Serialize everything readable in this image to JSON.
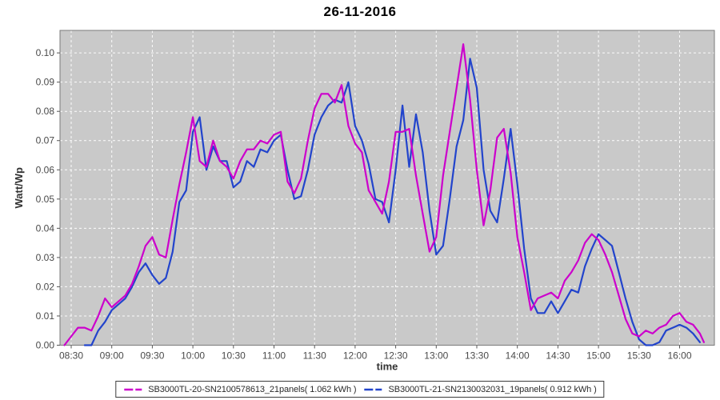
{
  "chart_data": {
    "type": "line",
    "title": "26-11-2016",
    "xlabel": "time",
    "ylabel": "Watt/Wp",
    "ylim": [
      0.0,
      0.1077
    ],
    "x_ticks": [
      "08:30",
      "09:00",
      "09:30",
      "10:00",
      "10:30",
      "11:00",
      "11:30",
      "12:00",
      "12:30",
      "13:00",
      "13:30",
      "14:00",
      "14:30",
      "15:00",
      "15:30",
      "16:00"
    ],
    "y_ticks": [
      "0.00",
      "0.01",
      "0.02",
      "0.03",
      "0.04",
      "0.05",
      "0.06",
      "0.07",
      "0.08",
      "0.09",
      "0.10"
    ],
    "grid": {
      "show": true,
      "style": "dashed",
      "color": "#ffffff"
    },
    "plot_background": "#c9c9c9",
    "frame_color": "#7a7a7a",
    "legend_position": "bottom",
    "series": [
      {
        "name": "SB3000TL-20-SN2100578613_21panels( 1.062 kWh )",
        "color": "#cc00cc",
        "energy_kwh": "1.062",
        "points": [
          [
            "08:25",
            0.0
          ],
          [
            "08:30",
            0.003
          ],
          [
            "08:35",
            0.006
          ],
          [
            "08:40",
            0.006
          ],
          [
            "08:45",
            0.005
          ],
          [
            "08:50",
            0.01
          ],
          [
            "08:55",
            0.016
          ],
          [
            "09:00",
            0.013
          ],
          [
            "09:05",
            0.015
          ],
          [
            "09:10",
            0.017
          ],
          [
            "09:15",
            0.021
          ],
          [
            "09:20",
            0.027
          ],
          [
            "09:25",
            0.034
          ],
          [
            "09:30",
            0.037
          ],
          [
            "09:35",
            0.031
          ],
          [
            "09:40",
            0.03
          ],
          [
            "09:45",
            0.043
          ],
          [
            "09:50",
            0.055
          ],
          [
            "09:55",
            0.066
          ],
          [
            "10:00",
            0.078
          ],
          [
            "10:05",
            0.063
          ],
          [
            "10:10",
            0.061
          ],
          [
            "10:15",
            0.07
          ],
          [
            "10:20",
            0.063
          ],
          [
            "10:25",
            0.061
          ],
          [
            "10:30",
            0.057
          ],
          [
            "10:35",
            0.063
          ],
          [
            "10:40",
            0.067
          ],
          [
            "10:45",
            0.067
          ],
          [
            "10:50",
            0.07
          ],
          [
            "10:55",
            0.069
          ],
          [
            "11:00",
            0.072
          ],
          [
            "11:05",
            0.073
          ],
          [
            "11:10",
            0.056
          ],
          [
            "11:15",
            0.052
          ],
          [
            "11:20",
            0.057
          ],
          [
            "11:25",
            0.07
          ],
          [
            "11:30",
            0.081
          ],
          [
            "11:35",
            0.086
          ],
          [
            "11:40",
            0.086
          ],
          [
            "11:45",
            0.083
          ],
          [
            "11:50",
            0.089
          ],
          [
            "11:55",
            0.075
          ],
          [
            "12:00",
            0.069
          ],
          [
            "12:05",
            0.066
          ],
          [
            "12:10",
            0.053
          ],
          [
            "12:15",
            0.049
          ],
          [
            "12:20",
            0.045
          ],
          [
            "12:25",
            0.056
          ],
          [
            "12:30",
            0.073
          ],
          [
            "12:35",
            0.073
          ],
          [
            "12:40",
            0.074
          ],
          [
            "12:45",
            0.058
          ],
          [
            "12:50",
            0.045
          ],
          [
            "12:55",
            0.032
          ],
          [
            "13:00",
            0.037
          ],
          [
            "13:05",
            0.058
          ],
          [
            "13:10",
            0.073
          ],
          [
            "13:15",
            0.088
          ],
          [
            "13:20",
            0.103
          ],
          [
            "13:25",
            0.084
          ],
          [
            "13:30",
            0.06
          ],
          [
            "13:35",
            0.041
          ],
          [
            "13:40",
            0.053
          ],
          [
            "13:45",
            0.071
          ],
          [
            "13:50",
            0.074
          ],
          [
            "13:55",
            0.059
          ],
          [
            "14:00",
            0.037
          ],
          [
            "14:05",
            0.025
          ],
          [
            "14:10",
            0.012
          ],
          [
            "14:15",
            0.016
          ],
          [
            "14:20",
            0.017
          ],
          [
            "14:25",
            0.018
          ],
          [
            "14:30",
            0.016
          ],
          [
            "14:35",
            0.022
          ],
          [
            "14:40",
            0.025
          ],
          [
            "14:45",
            0.029
          ],
          [
            "14:50",
            0.035
          ],
          [
            "14:55",
            0.038
          ],
          [
            "15:00",
            0.036
          ],
          [
            "15:05",
            0.031
          ],
          [
            "15:10",
            0.025
          ],
          [
            "15:15",
            0.017
          ],
          [
            "15:20",
            0.009
          ],
          [
            "15:25",
            0.004
          ],
          [
            "15:30",
            0.003
          ],
          [
            "15:35",
            0.005
          ],
          [
            "15:40",
            0.004
          ],
          [
            "15:45",
            0.006
          ],
          [
            "15:50",
            0.007
          ],
          [
            "15:55",
            0.01
          ],
          [
            "16:00",
            0.011
          ],
          [
            "16:05",
            0.008
          ],
          [
            "16:10",
            0.007
          ],
          [
            "16:15",
            0.004
          ],
          [
            "16:18",
            0.001
          ]
        ]
      },
      {
        "name": "SB3000TL-21-SN2130032031_19panels( 0.912 kWh )",
        "color": "#2244cc",
        "energy_kwh": "0.912",
        "points": [
          [
            "08:40",
            0.0
          ],
          [
            "08:45",
            0.0
          ],
          [
            "08:50",
            0.005
          ],
          [
            "08:55",
            0.008
          ],
          [
            "09:00",
            0.012
          ],
          [
            "09:05",
            0.014
          ],
          [
            "09:10",
            0.016
          ],
          [
            "09:15",
            0.02
          ],
          [
            "09:20",
            0.025
          ],
          [
            "09:25",
            0.028
          ],
          [
            "09:30",
            0.024
          ],
          [
            "09:35",
            0.021
          ],
          [
            "09:40",
            0.023
          ],
          [
            "09:45",
            0.032
          ],
          [
            "09:50",
            0.049
          ],
          [
            "09:55",
            0.053
          ],
          [
            "10:00",
            0.073
          ],
          [
            "10:05",
            0.078
          ],
          [
            "10:10",
            0.06
          ],
          [
            "10:15",
            0.068
          ],
          [
            "10:20",
            0.063
          ],
          [
            "10:25",
            0.063
          ],
          [
            "10:30",
            0.054
          ],
          [
            "10:35",
            0.056
          ],
          [
            "10:40",
            0.063
          ],
          [
            "10:45",
            0.061
          ],
          [
            "10:50",
            0.067
          ],
          [
            "10:55",
            0.066
          ],
          [
            "11:00",
            0.07
          ],
          [
            "11:05",
            0.072
          ],
          [
            "11:10",
            0.06
          ],
          [
            "11:15",
            0.05
          ],
          [
            "11:20",
            0.051
          ],
          [
            "11:25",
            0.06
          ],
          [
            "11:30",
            0.072
          ],
          [
            "11:35",
            0.078
          ],
          [
            "11:40",
            0.082
          ],
          [
            "11:45",
            0.084
          ],
          [
            "11:50",
            0.083
          ],
          [
            "11:55",
            0.09
          ],
          [
            "12:00",
            0.075
          ],
          [
            "12:05",
            0.07
          ],
          [
            "12:10",
            0.062
          ],
          [
            "12:15",
            0.05
          ],
          [
            "12:20",
            0.049
          ],
          [
            "12:25",
            0.042
          ],
          [
            "12:30",
            0.06
          ],
          [
            "12:35",
            0.082
          ],
          [
            "12:40",
            0.061
          ],
          [
            "12:45",
            0.079
          ],
          [
            "12:50",
            0.066
          ],
          [
            "12:55",
            0.046
          ],
          [
            "13:00",
            0.031
          ],
          [
            "13:05",
            0.034
          ],
          [
            "13:10",
            0.05
          ],
          [
            "13:15",
            0.068
          ],
          [
            "13:20",
            0.077
          ],
          [
            "13:25",
            0.098
          ],
          [
            "13:30",
            0.088
          ],
          [
            "13:35",
            0.06
          ],
          [
            "13:40",
            0.046
          ],
          [
            "13:45",
            0.042
          ],
          [
            "13:50",
            0.057
          ],
          [
            "13:55",
            0.074
          ],
          [
            "14:00",
            0.055
          ],
          [
            "14:05",
            0.033
          ],
          [
            "14:10",
            0.016
          ],
          [
            "14:15",
            0.011
          ],
          [
            "14:20",
            0.011
          ],
          [
            "14:25",
            0.015
          ],
          [
            "14:30",
            0.011
          ],
          [
            "14:35",
            0.015
          ],
          [
            "14:40",
            0.019
          ],
          [
            "14:45",
            0.018
          ],
          [
            "14:50",
            0.027
          ],
          [
            "14:55",
            0.033
          ],
          [
            "15:00",
            0.038
          ],
          [
            "15:05",
            0.036
          ],
          [
            "15:10",
            0.034
          ],
          [
            "15:15",
            0.025
          ],
          [
            "15:20",
            0.016
          ],
          [
            "15:25",
            0.008
          ],
          [
            "15:30",
            0.002
          ],
          [
            "15:35",
            0.0
          ],
          [
            "15:40",
            0.0
          ],
          [
            "15:45",
            0.001
          ],
          [
            "15:50",
            0.005
          ],
          [
            "15:55",
            0.006
          ],
          [
            "16:00",
            0.007
          ],
          [
            "16:05",
            0.006
          ],
          [
            "16:10",
            0.004
          ],
          [
            "16:15",
            0.001
          ]
        ]
      }
    ]
  }
}
